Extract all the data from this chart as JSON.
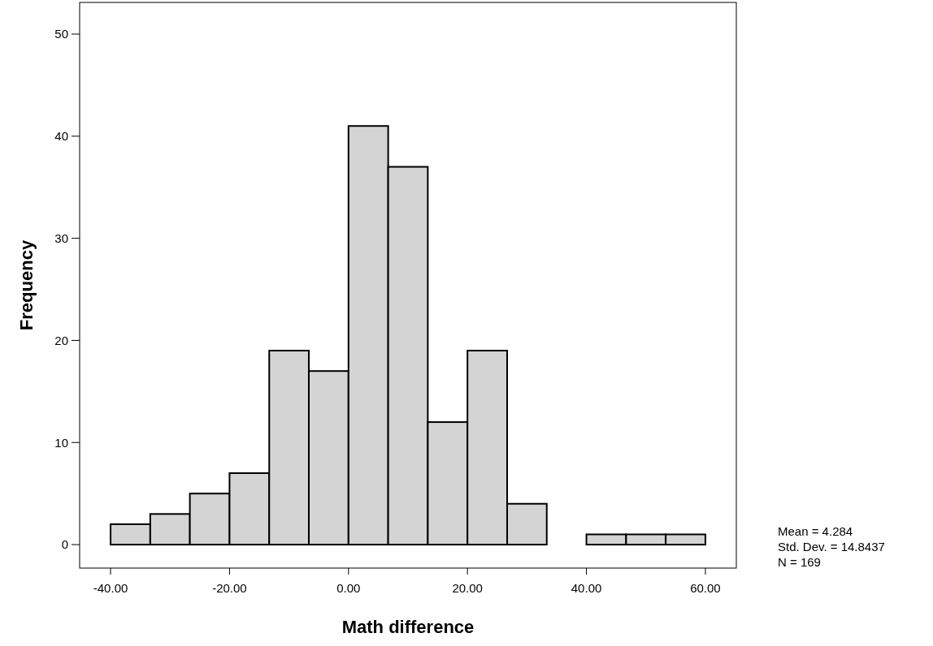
{
  "chart_data": {
    "type": "histogram",
    "xlabel": "Math difference",
    "ylabel": "Frequency",
    "bins": [
      -40,
      -33.33,
      -26.67,
      -20,
      -13.33,
      -6.67,
      0,
      6.67,
      13.33,
      20,
      26.67,
      33.33,
      40,
      46.67,
      53.33,
      60
    ],
    "values": [
      2,
      3,
      5,
      7,
      19,
      17,
      41,
      37,
      12,
      19,
      4,
      0,
      1,
      1,
      1
    ],
    "color": "#d4d4d4",
    "xlim": [
      -45.2,
      65.2
    ],
    "ylim": [
      -2.3,
      53.1
    ],
    "xticks": [
      {
        "value": -40,
        "label": "-40.00"
      },
      {
        "value": -20,
        "label": "-20.00"
      },
      {
        "value": 0,
        "label": "0.00"
      },
      {
        "value": 20,
        "label": "20.00"
      },
      {
        "value": 40,
        "label": "40.00"
      },
      {
        "value": 60,
        "label": "60.00"
      }
    ],
    "yticks": [
      0,
      10,
      20,
      30,
      40,
      50
    ],
    "grid": false,
    "annotations": [
      "Mean = 4.284",
      "Std. Dev. = 14.8437",
      "N = 169"
    ]
  }
}
